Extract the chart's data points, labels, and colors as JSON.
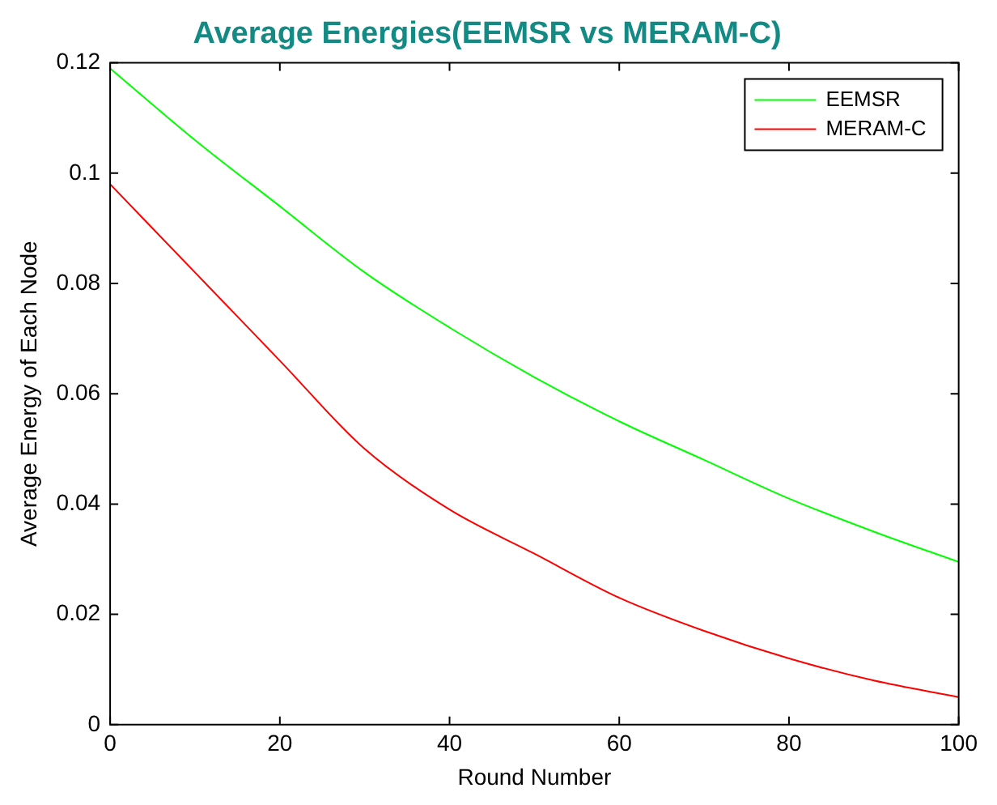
{
  "chart_data": {
    "type": "line",
    "title": "Average Energies(EEMSR vs MERAM-C)",
    "xlabel": "Round Number",
    "ylabel": "Average Energy of Each Node",
    "x": [
      0,
      10,
      20,
      30,
      40,
      50,
      60,
      70,
      80,
      90,
      100
    ],
    "series": [
      {
        "name": "EEMSR",
        "color": "#00ff00",
        "values": [
          0.119,
          0.106,
          0.094,
          0.082,
          0.072,
          0.063,
          0.055,
          0.048,
          0.041,
          0.035,
          0.0295
        ]
      },
      {
        "name": "MERAM-C",
        "color": "#ff0000",
        "values": [
          0.098,
          0.082,
          0.066,
          0.05,
          0.039,
          0.031,
          0.023,
          0.017,
          0.012,
          0.008,
          0.005
        ]
      }
    ],
    "xlim": [
      0,
      100
    ],
    "xticks": [
      0,
      20,
      40,
      60,
      80,
      100
    ],
    "ylim": [
      0,
      0.12
    ],
    "yticks": [
      0,
      0.02,
      0.04,
      0.06,
      0.08,
      0.1,
      0.12
    ],
    "grid": false,
    "legend": "top right",
    "marker": "none",
    "line_style": "solid"
  }
}
